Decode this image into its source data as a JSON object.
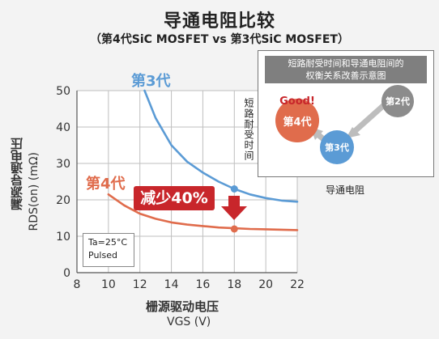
{
  "header": {
    "title": "导通电阻比较",
    "subtitle": "（第4代SiC MOSFET vs 第3代SiC MOSFET）"
  },
  "colors": {
    "gen3": "#5b9bd5",
    "gen4": "#e06c4c",
    "accent_red": "#c8262b",
    "grid": "#bfbfbf",
    "gen2": "#8c8c8c"
  },
  "annotations": {
    "reduce_label": "减少40%",
    "note_line1": "Ta=25°C",
    "note_line2": "Pulsed",
    "gen3_label": "第3代",
    "gen4_label": "第4代"
  },
  "inset": {
    "header_line1": "短路耐受时间和导通电阻间的",
    "header_line2": "权衡关系改善示意图",
    "ylabel": "短路耐受时间",
    "xlabel": "导通电阻",
    "good_label": "Good!",
    "gen4_bubble": "第4代",
    "gen3_bubble": "第3代",
    "gen2_bubble": "第2代"
  },
  "axes": {
    "ylabel_cn": "漏源导通电压",
    "ylabel_en": "RDS(on) (mΩ)",
    "xlabel_cn": "栅源驱动电压",
    "xlabel_en": "VGS (V)"
  },
  "chart_data": {
    "type": "line",
    "title": "导通电阻比较",
    "subtitle": "（第4代SiC MOSFET vs 第3代SiC MOSFET）",
    "xlabel": "栅源驱动电压 VGS (V)",
    "ylabel": "漏源导通电压 RDS(on) (mΩ)",
    "xlim": [
      8,
      22
    ],
    "ylim": [
      0,
      50
    ],
    "xticks": [
      8,
      10,
      12,
      14,
      16,
      18,
      20,
      22
    ],
    "yticks": [
      0,
      10,
      20,
      30,
      40,
      50
    ],
    "grid": true,
    "series": [
      {
        "name": "第3代",
        "color": "#5b9bd5",
        "x": [
          12.3,
          13,
          14,
          15,
          16,
          17,
          18,
          19,
          20,
          21,
          22
        ],
        "y": [
          50,
          42.5,
          35,
          30.5,
          27.5,
          25,
          23,
          21.5,
          20.5,
          19.8,
          19.5
        ],
        "marker": {
          "x": 18,
          "y": 23
        }
      },
      {
        "name": "第4代",
        "color": "#e06c4c",
        "x": [
          10,
          11,
          12,
          13,
          14,
          15,
          16,
          17,
          18,
          19,
          20,
          21,
          22
        ],
        "y": [
          21.5,
          18.5,
          16.2,
          14.8,
          13.8,
          13.2,
          12.8,
          12.4,
          12.2,
          12.0,
          11.9,
          11.8,
          11.7
        ],
        "marker": {
          "x": 18,
          "y": 12
        }
      }
    ]
  }
}
